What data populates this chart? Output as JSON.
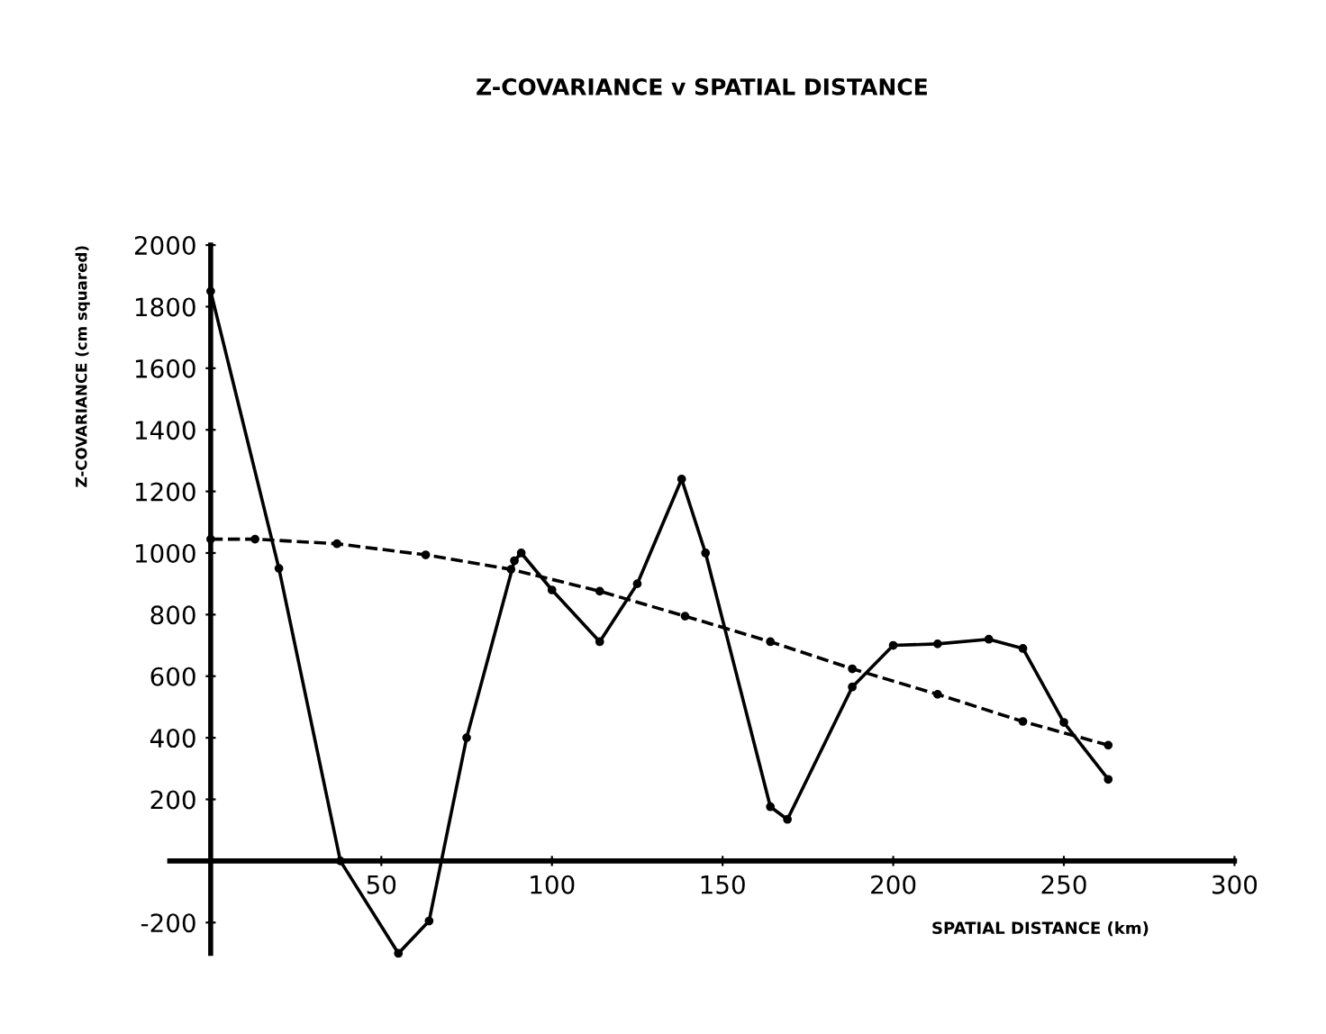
{
  "chart_data": {
    "type": "line",
    "title": "Z-COVARIANCE v SPATIAL DISTANCE",
    "xlabel": "SPATIAL DISTANCE (km)",
    "ylabel": "Z-COVARIANCE (cm squared)",
    "series": [
      {
        "color": "#000000",
        "line_style": "solid",
        "x": [
          0,
          20,
          38,
          55,
          64,
          75,
          89,
          91,
          100,
          114,
          125,
          138,
          145,
          164,
          169,
          188,
          200,
          213,
          228,
          238,
          250,
          263
        ],
        "values": [
          1850,
          950,
          0,
          -300,
          -195,
          400,
          975,
          1000,
          880,
          712,
          900,
          1240,
          1000,
          176,
          135,
          565,
          700,
          705,
          720,
          690,
          450,
          265
        ]
      },
      {
        "color": "#000000",
        "line_style": "dashed",
        "x": [
          0,
          13,
          37,
          63,
          88,
          114,
          139,
          164,
          188,
          213,
          238,
          263
        ],
        "values": [
          1045,
          1045,
          1030,
          994,
          947,
          876,
          795,
          712,
          624,
          541,
          453,
          376
        ]
      }
    ],
    "xlim": [
      -12,
      300
    ],
    "ylim": [
      -300,
      2000
    ],
    "xticks": [
      50,
      100,
      150,
      200,
      250,
      300
    ],
    "yticks": [
      -200,
      200,
      400,
      600,
      800,
      1000,
      1200,
      1400,
      1600,
      1800,
      2000
    ],
    "marker": "circle",
    "grid": false,
    "legend": false
  }
}
